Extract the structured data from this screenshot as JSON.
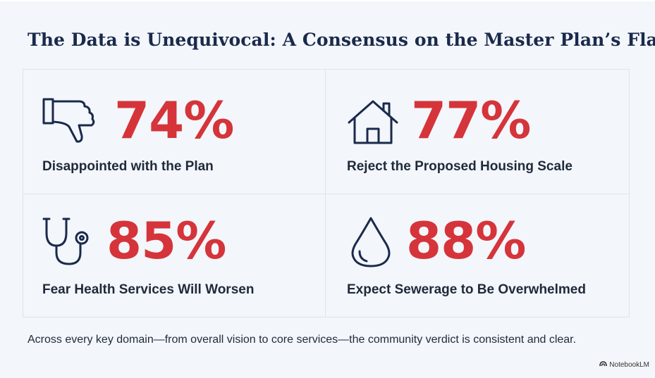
{
  "title": "The Data is Unequivocal: A Consensus on the Master Plan’s Flaws",
  "stats": [
    {
      "value": "74%",
      "label": "Disappointed with the Plan",
      "icon": "thumbs-down-icon"
    },
    {
      "value": "77%",
      "label": "Reject the Proposed Housing Scale",
      "icon": "house-icon"
    },
    {
      "value": "85%",
      "label": "Fear Health Services Will Worsen",
      "icon": "stethoscope-icon"
    },
    {
      "value": "88%",
      "label": "Expect Sewerage to Be Overwhelmed",
      "icon": "water-drop-icon"
    }
  ],
  "footer": "Across every key domain—from overall vision to core services—the community verdict is consistent and clear.",
  "brand": "NotebookLM",
  "colors": {
    "accent": "#d5343a",
    "navy": "#1a2a4c",
    "background": "#f3f6fa"
  }
}
